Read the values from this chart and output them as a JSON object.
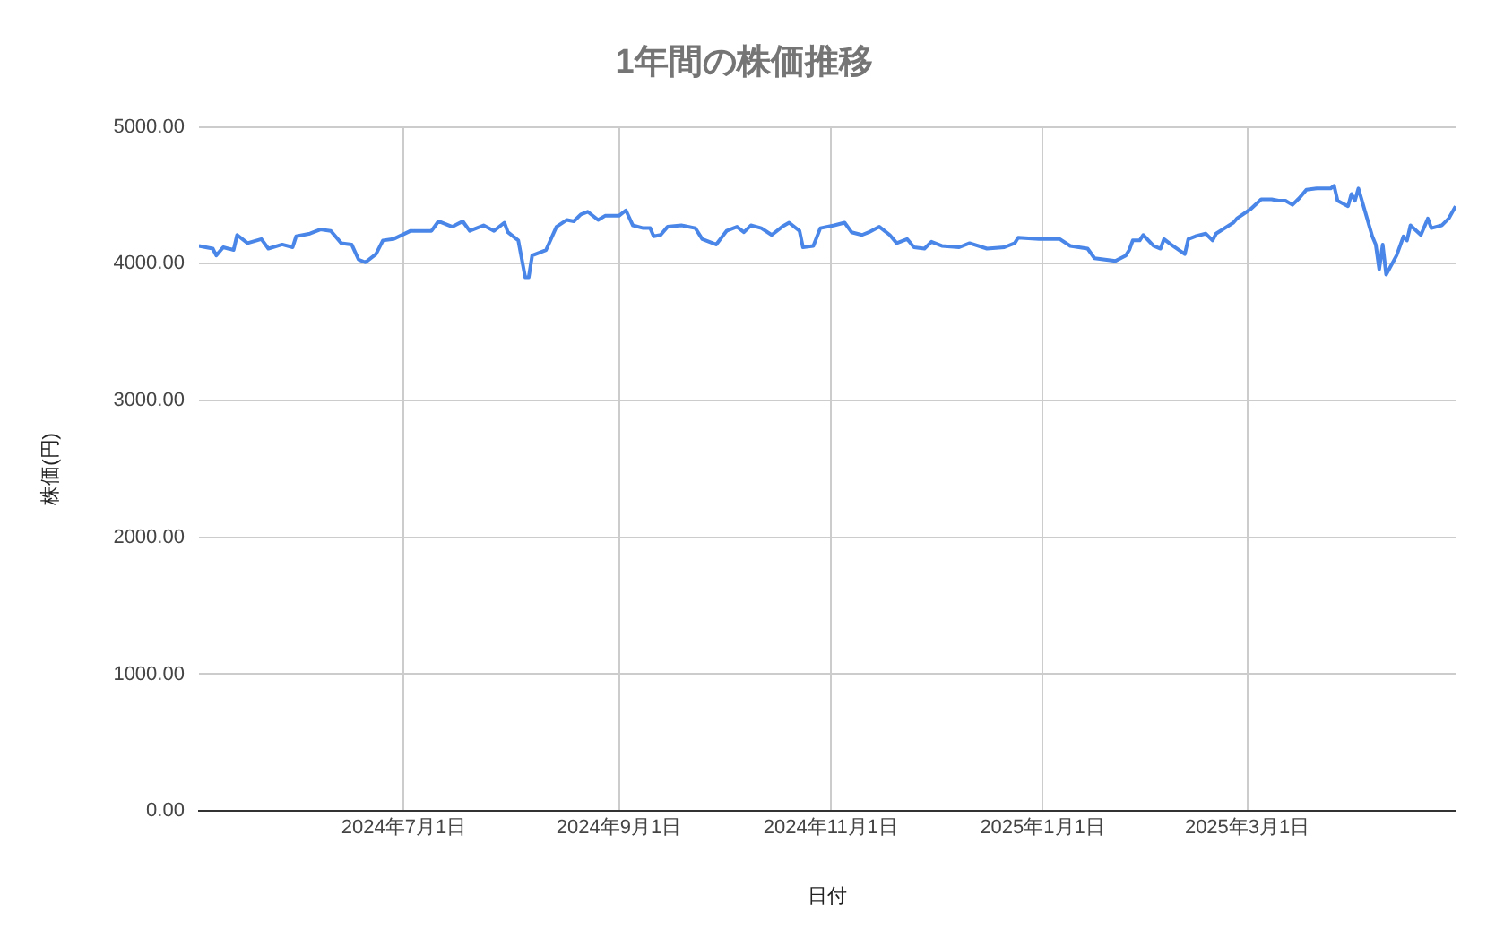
{
  "chart_data": {
    "type": "line",
    "title": "1年間の株価推移",
    "xlabel": "日付",
    "ylabel": "株価(円)",
    "grid": true,
    "legend": false,
    "marker": "none",
    "line_style": "solid",
    "xlim": [
      "2024-05-03",
      "2025-04-30"
    ],
    "xticks": [
      {
        "value": "2024-07-01",
        "label": "2024年7月1日"
      },
      {
        "value": "2024-09-01",
        "label": "2024年9月1日"
      },
      {
        "value": "2024-11-01",
        "label": "2024年11月1日"
      },
      {
        "value": "2025-01-01",
        "label": "2025年1月1日"
      },
      {
        "value": "2025-03-01",
        "label": "2025年3月1日"
      }
    ],
    "ylim": [
      0,
      5000
    ],
    "yticks": [
      {
        "value": 0,
        "label": "0.00"
      },
      {
        "value": 1000,
        "label": "1000.00"
      },
      {
        "value": 2000,
        "label": "2000.00"
      },
      {
        "value": 3000,
        "label": "3000.00"
      },
      {
        "value": 4000,
        "label": "4000.00"
      },
      {
        "value": 5000,
        "label": "5000.00"
      }
    ],
    "x": [
      "2024-05-03",
      "2024-05-07",
      "2024-05-08",
      "2024-05-10",
      "2024-05-13",
      "2024-05-14",
      "2024-05-17",
      "2024-05-21",
      "2024-05-23",
      "2024-05-27",
      "2024-05-30",
      "2024-05-31",
      "2024-06-04",
      "2024-06-07",
      "2024-06-10",
      "2024-06-13",
      "2024-06-16",
      "2024-06-18",
      "2024-06-20",
      "2024-06-23",
      "2024-06-25",
      "2024-06-28",
      "2024-07-03",
      "2024-07-09",
      "2024-07-11",
      "2024-07-15",
      "2024-07-18",
      "2024-07-20",
      "2024-07-24",
      "2024-07-27",
      "2024-07-30",
      "2024-07-31",
      "2024-08-03",
      "2024-08-05",
      "2024-08-06",
      "2024-08-07",
      "2024-08-11",
      "2024-08-14",
      "2024-08-17",
      "2024-08-19",
      "2024-08-21",
      "2024-08-23",
      "2024-08-26",
      "2024-08-28",
      "2024-09-01",
      "2024-09-03",
      "2024-09-05",
      "2024-09-08",
      "2024-09-10",
      "2024-09-11",
      "2024-09-13",
      "2024-09-15",
      "2024-09-19",
      "2024-09-23",
      "2024-09-25",
      "2024-09-29",
      "2024-10-02",
      "2024-10-05",
      "2024-10-07",
      "2024-10-09",
      "2024-10-12",
      "2024-10-15",
      "2024-10-18",
      "2024-10-20",
      "2024-10-23",
      "2024-10-24",
      "2024-10-27",
      "2024-10-29",
      "2024-11-02",
      "2024-11-05",
      "2024-11-07",
      "2024-11-10",
      "2024-11-12",
      "2024-11-15",
      "2024-11-18",
      "2024-11-20",
      "2024-11-23",
      "2024-11-25",
      "2024-11-28",
      "2024-11-30",
      "2024-12-03",
      "2024-12-08",
      "2024-12-11",
      "2024-12-16",
      "2024-12-21",
      "2024-12-24",
      "2024-12-25",
      "2024-12-31",
      "2025-01-06",
      "2025-01-09",
      "2025-01-14",
      "2025-01-16",
      "2025-01-22",
      "2025-01-25",
      "2025-01-26",
      "2025-01-27",
      "2025-01-29",
      "2025-01-30",
      "2025-02-02",
      "2025-02-04",
      "2025-02-05",
      "2025-02-07",
      "2025-02-11",
      "2025-02-12",
      "2025-02-14",
      "2025-02-17",
      "2025-02-19",
      "2025-02-20",
      "2025-02-25",
      "2025-02-26",
      "2025-03-02",
      "2025-03-05",
      "2025-03-08",
      "2025-03-10",
      "2025-03-12",
      "2025-03-14",
      "2025-03-16",
      "2025-03-18",
      "2025-03-21",
      "2025-03-25",
      "2025-03-26",
      "2025-03-27",
      "2025-03-30",
      "2025-03-31",
      "2025-04-01",
      "2025-04-02",
      "2025-04-06",
      "2025-04-07",
      "2025-04-08",
      "2025-04-09",
      "2025-04-10",
      "2025-04-13",
      "2025-04-15",
      "2025-04-16",
      "2025-04-17",
      "2025-04-20",
      "2025-04-22",
      "2025-04-23",
      "2025-04-26",
      "2025-04-28",
      "2025-04-30"
    ],
    "series": [
      {
        "color": "#4a86e8",
        "values": [
          4130,
          4110,
          4060,
          4120,
          4100,
          4210,
          4150,
          4180,
          4110,
          4140,
          4120,
          4200,
          4220,
          4250,
          4240,
          4150,
          4140,
          4030,
          4010,
          4070,
          4170,
          4180,
          4240,
          4240,
          4310,
          4270,
          4310,
          4240,
          4280,
          4240,
          4300,
          4230,
          4170,
          3900,
          3900,
          4060,
          4100,
          4270,
          4320,
          4310,
          4360,
          4380,
          4320,
          4350,
          4350,
          4390,
          4280,
          4260,
          4260,
          4200,
          4210,
          4270,
          4280,
          4260,
          4180,
          4140,
          4240,
          4270,
          4230,
          4280,
          4260,
          4210,
          4270,
          4300,
          4240,
          4120,
          4130,
          4260,
          4280,
          4300,
          4230,
          4210,
          4230,
          4270,
          4210,
          4150,
          4180,
          4120,
          4110,
          4160,
          4130,
          4120,
          4150,
          4110,
          4120,
          4150,
          4190,
          4180,
          4180,
          4130,
          4110,
          4040,
          4020,
          4060,
          4100,
          4170,
          4170,
          4210,
          4130,
          4110,
          4180,
          4140,
          4070,
          4180,
          4200,
          4220,
          4170,
          4220,
          4300,
          4330,
          4400,
          4470,
          4470,
          4460,
          4460,
          4430,
          4480,
          4540,
          4550,
          4550,
          4570,
          4460,
          4420,
          4510,
          4460,
          4550,
          4200,
          4140,
          3960,
          4140,
          3920,
          4060,
          4200,
          4170,
          4280,
          4210,
          4330,
          4260,
          4280,
          4330,
          4420
        ]
      }
    ]
  }
}
